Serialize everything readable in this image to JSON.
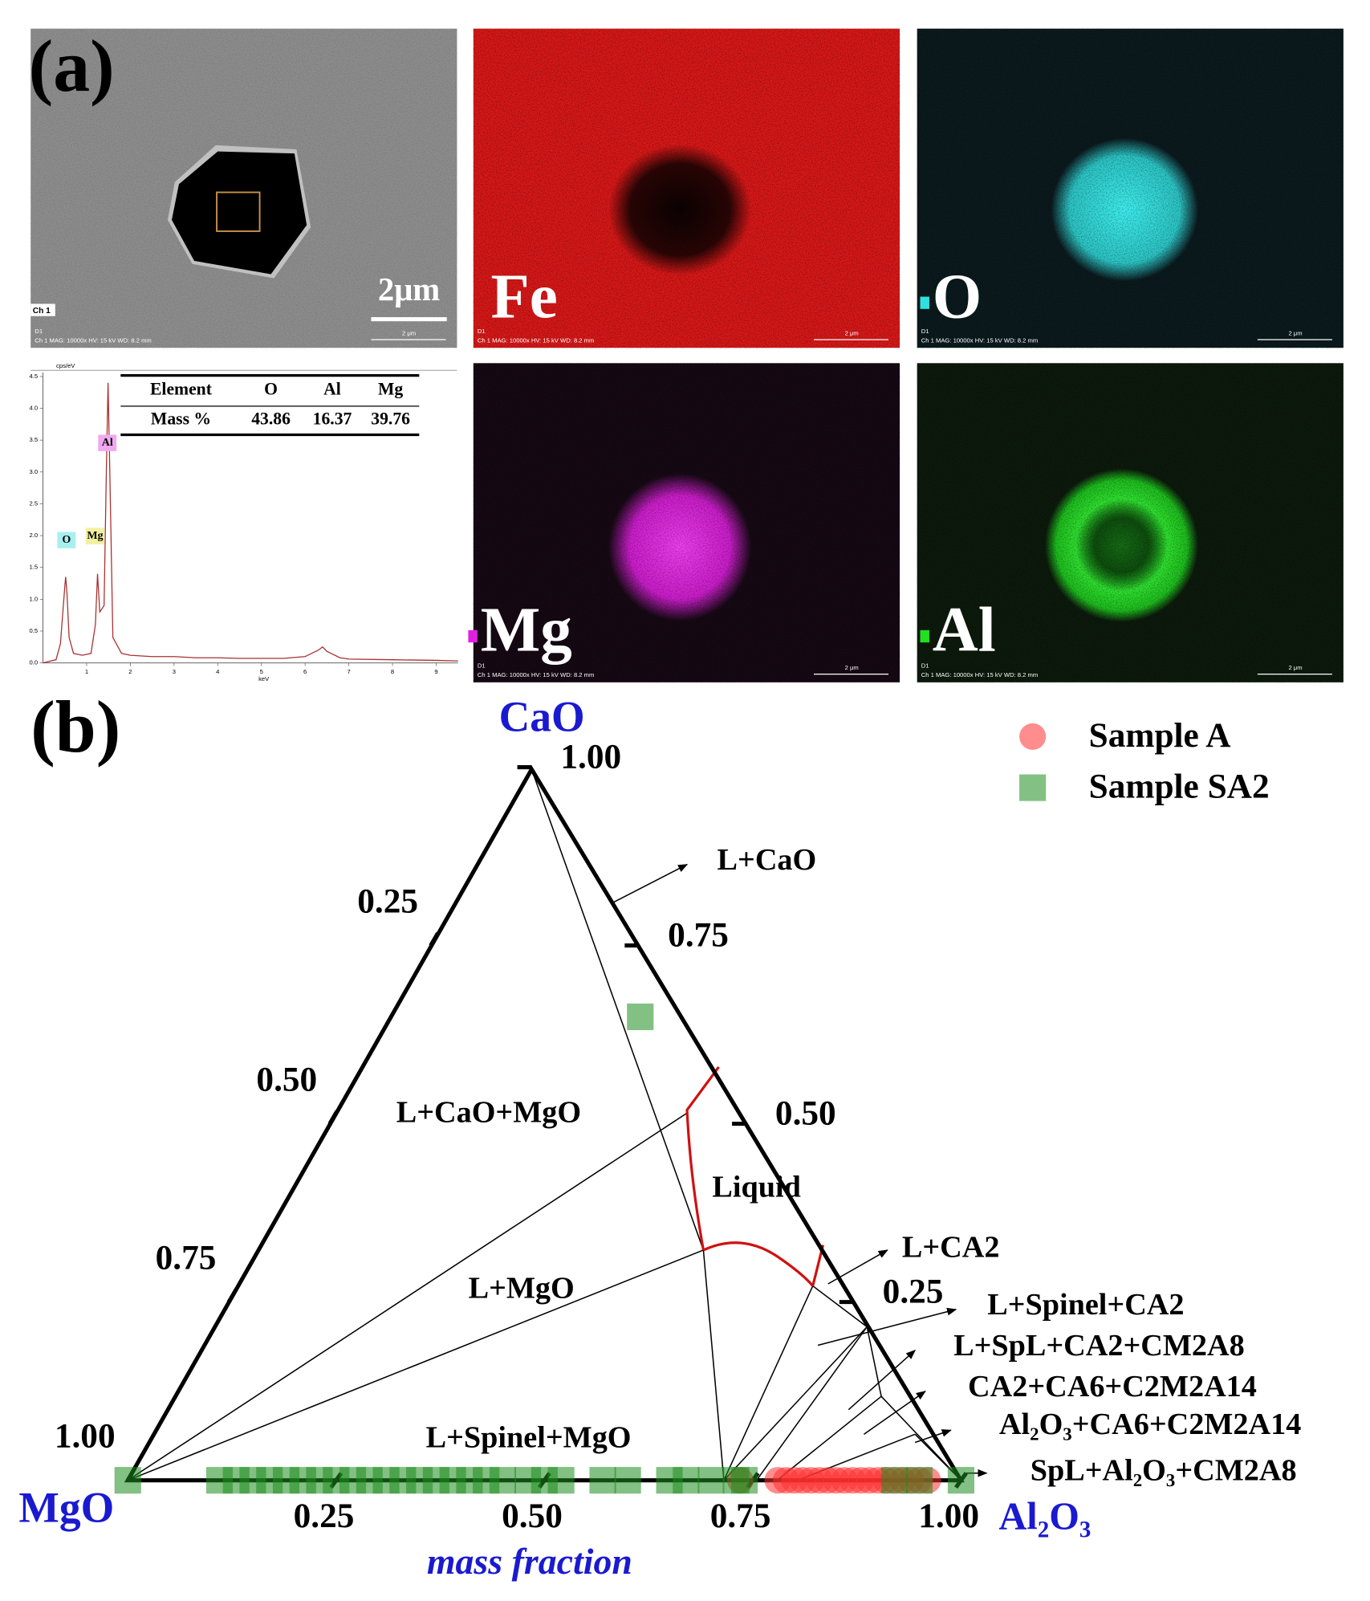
{
  "panel_a": {
    "label": "(a)",
    "sem": {
      "scale_bar": "2μm",
      "channel": "Ch 1"
    },
    "footer": {
      "detector": "D1",
      "info": "Ch 1   MAG: 10000x   HV: 15 kV   WD: 8.2 mm",
      "scale": "2 μm"
    },
    "maps": [
      {
        "element": "Fe",
        "color": "#d81818"
      },
      {
        "element": "O",
        "color": "#30e0e0"
      },
      {
        "element": "Mg",
        "color": "#e020e0"
      },
      {
        "element": "Al",
        "color": "#20e020"
      }
    ],
    "spectrum": {
      "type": "line",
      "color": "#a83030",
      "x": [
        0,
        0.3,
        0.4,
        0.5,
        0.52,
        0.55,
        0.6,
        0.7,
        0.9,
        1.1,
        1.2,
        1.25,
        1.3,
        1.4,
        1.45,
        1.49,
        1.53,
        1.6,
        1.8,
        2.0,
        2.5,
        3,
        3.5,
        4,
        4.5,
        5,
        5.5,
        6,
        6.3,
        6.4,
        6.5,
        6.8,
        7,
        8,
        9,
        9.5
      ],
      "values": [
        0,
        0.05,
        0.3,
        1.2,
        1.35,
        1.1,
        0.4,
        0.15,
        0.12,
        0.15,
        0.6,
        1.4,
        0.8,
        0.9,
        3.0,
        4.4,
        3.0,
        0.4,
        0.15,
        0.12,
        0.1,
        0.1,
        0.08,
        0.08,
        0.07,
        0.07,
        0.07,
        0.1,
        0.2,
        0.25,
        0.18,
        0.08,
        0.06,
        0.05,
        0.04,
        0.03
      ],
      "xlim": [
        0,
        9.5
      ],
      "ylim": [
        0,
        4.5
      ],
      "xticks": [
        1,
        2,
        3,
        4,
        5,
        6,
        7,
        8,
        9
      ],
      "yticks": [
        {
          "value": 0,
          "label": "0.0"
        },
        0.5,
        {
          "value": 1,
          "label": "1.0"
        },
        1.5,
        {
          "value": 2,
          "label": "2.0"
        },
        2.5,
        {
          "value": 3,
          "label": "3.0"
        },
        3.5,
        {
          "value": 4,
          "label": "4.0"
        },
        4.5
      ],
      "x_label": "keV",
      "y_label": "cps/eV",
      "peaks": [
        "O",
        "Mg",
        "Al"
      ]
    },
    "table": {
      "header": [
        "Element",
        "O",
        "Al",
        "Mg"
      ],
      "rows": [
        [
          "Mass %",
          43.86,
          16.37,
          39.76
        ]
      ]
    }
  },
  "chart_data": {
    "type": "ternary",
    "label": "(b)",
    "vertices": {
      "top": "CaO",
      "left": "MgO",
      "right": "Al₂O₃"
    },
    "axis_label": "mass fraction",
    "ticks": {
      "bottom": [
        0.25,
        {
          "value": 0.5,
          "label": "0.50"
        },
        0.75,
        {
          "value": 1,
          "label": "1.00"
        }
      ],
      "right": [
        0.25,
        {
          "value": 0.5,
          "label": "0.50"
        },
        0.75,
        {
          "value": 1,
          "label": "1.00"
        }
      ],
      "left": [
        0.25,
        {
          "value": 0.5,
          "label": "0.50"
        },
        0.75,
        {
          "value": 1,
          "label": "1.00"
        }
      ]
    },
    "regions": [
      "L+CaO",
      "L+CaO+MgO",
      "Liquid",
      "L+MgO",
      "L+Spinel+MgO",
      "L+CA2",
      "L+Spinel+CA2",
      "L+SpL+CA2+CM2A8",
      "CA2+CA6+C2M2A14",
      "Al₂O₃+CA6+C2M2A14",
      "SpL+Al₂O₃+CM2A8"
    ],
    "legend": "top-right",
    "series": [
      {
        "name": "Sample   A",
        "color": "#ff3030",
        "marker": "circle",
        "al2o3": [
          0.735,
          0.78,
          0.79,
          0.8,
          0.81,
          0.82,
          0.83,
          0.84,
          0.85,
          0.86,
          0.87,
          0.88,
          0.89,
          0.9,
          0.91,
          0.92,
          0.93,
          0.94,
          0.95,
          0.96
        ],
        "cao": [
          0,
          0,
          0,
          0,
          0,
          0,
          0,
          0,
          0,
          0,
          0,
          0,
          0,
          0,
          0,
          0,
          0,
          0,
          0,
          0
        ]
      },
      {
        "name": "Sample SA2",
        "color": "#1e8c1e",
        "marker": "square",
        "al2o3": [
          0,
          0.11,
          0.13,
          0.15,
          0.17,
          0.19,
          0.21,
          0.23,
          0.25,
          0.27,
          0.29,
          0.31,
          0.33,
          0.35,
          0.37,
          0.39,
          0.41,
          0.43,
          0.45,
          0.48,
          0.5,
          0.52,
          0.57,
          0.6,
          0.65,
          0.67,
          0.7,
          0.73,
          0.74,
          0.92,
          0.95,
          1.0,
          0.3
        ],
        "cao": [
          0,
          0,
          0,
          0,
          0,
          0,
          0,
          0,
          0,
          0,
          0,
          0,
          0,
          0,
          0,
          0,
          0,
          0,
          0,
          0,
          0,
          0,
          0,
          0,
          0,
          0,
          0,
          0,
          0,
          0,
          0,
          0,
          0.65
        ]
      }
    ]
  }
}
